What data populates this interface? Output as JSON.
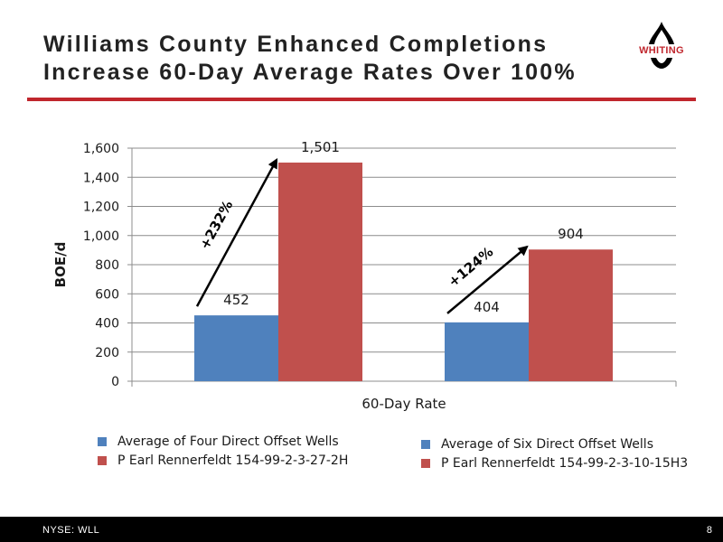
{
  "slide": {
    "title_lines": [
      "Williams County Enhanced Completions",
      "Increase 60-Day Average Rates Over 100%"
    ],
    "logo_text": "WHITING",
    "footer_left": "NYSE: WLL",
    "page_number": "8"
  },
  "colors": {
    "series_blue": "#4f81bd",
    "series_red": "#c0504d",
    "accent": "#c0262d"
  },
  "chart_data": {
    "type": "bar",
    "title": "",
    "xlabel": "60-Day Rate",
    "ylabel": "BOE/d",
    "ylim": [
      0,
      1600
    ],
    "yticks": [
      0,
      200,
      400,
      600,
      800,
      1000,
      1200,
      1400,
      1600
    ],
    "ytick_labels": [
      "0",
      "200",
      "400",
      "600",
      "800",
      "1,000",
      "1,200",
      "1,400",
      "1,600"
    ],
    "grid": true,
    "groups": [
      {
        "bars": [
          {
            "series": "Average of Four Direct Offset Wells",
            "value": 452,
            "label": "452"
          },
          {
            "series": "P Earl Rennerfeldt 154-99-2-3-27-2H",
            "value": 1501,
            "label": "1,501"
          }
        ],
        "increase_label": "+232%"
      },
      {
        "bars": [
          {
            "series": "Average of Six Direct Offset Wells",
            "value": 404,
            "label": "404"
          },
          {
            "series": "P Earl Rennerfeldt 154-99-2-3-10-15H3",
            "value": 904,
            "label": "904"
          }
        ],
        "increase_label": "+124%"
      }
    ],
    "legend": [
      [
        {
          "name": "Average of Four Direct Offset Wells",
          "color": "#4f81bd"
        },
        {
          "name": "P Earl Rennerfeldt 154-99-2-3-27-2H",
          "color": "#c0504d"
        }
      ],
      [
        {
          "name": "Average of Six Direct Offset Wells",
          "color": "#4f81bd"
        },
        {
          "name": "P Earl Rennerfeldt 154-99-2-3-10-15H3",
          "color": "#c0504d"
        }
      ]
    ],
    "legend_position": "bottom"
  }
}
